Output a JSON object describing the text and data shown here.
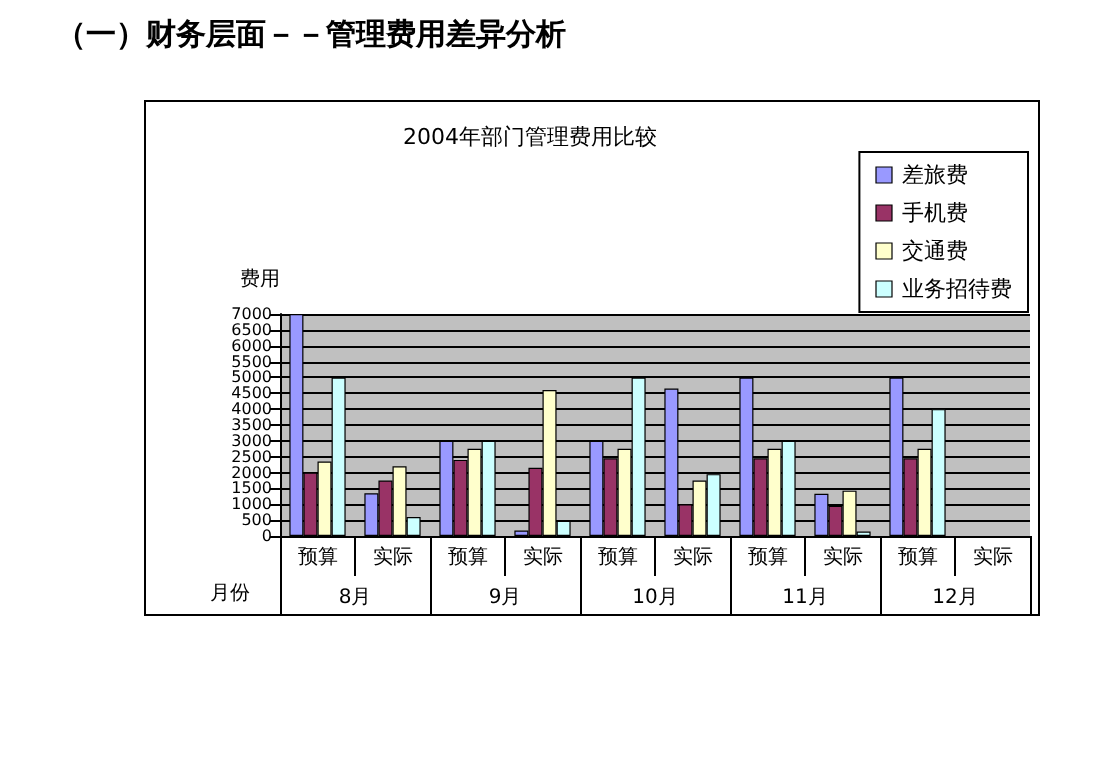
{
  "chart_data": {
    "type": "bar",
    "title": "（一）财务层面－－管理费用差异分析",
    "subtitle": "2004年部门管理费用比较",
    "ylabel": "费用",
    "xlabel": "月份",
    "categories": [
      "预算",
      "实际",
      "预算",
      "实际",
      "预算",
      "实际",
      "预算",
      "实际",
      "预算",
      "实际"
    ],
    "annotations": [
      "8月",
      "9月",
      "10月",
      "11月",
      "12月"
    ],
    "series": [
      {
        "name": "差旅费",
        "color": "#9999ff",
        "values": [
          7000,
          1350,
          3000,
          170,
          3000,
          4650,
          5000,
          1330,
          5000,
          null
        ]
      },
      {
        "name": "手机费",
        "color": "#993366",
        "values": [
          2000,
          1750,
          2400,
          2150,
          2450,
          1000,
          2450,
          950,
          2450,
          null
        ]
      },
      {
        "name": "交通费",
        "color": "#ffffcc",
        "values": [
          2350,
          2200,
          2750,
          4600,
          2750,
          1750,
          2750,
          1430,
          2750,
          null
        ]
      },
      {
        "name": "业务招待费",
        "color": "#ccffff",
        "values": [
          5000,
          600,
          3000,
          480,
          5000,
          1950,
          3000,
          140,
          4000,
          null
        ]
      }
    ],
    "ylim": [
      0,
      7000
    ],
    "yticks": [
      0,
      500,
      1000,
      1500,
      2000,
      2500,
      3000,
      3500,
      4000,
      4500,
      5000,
      5500,
      6000,
      6500,
      7000
    ],
    "grid": "y",
    "legend": "top right"
  }
}
